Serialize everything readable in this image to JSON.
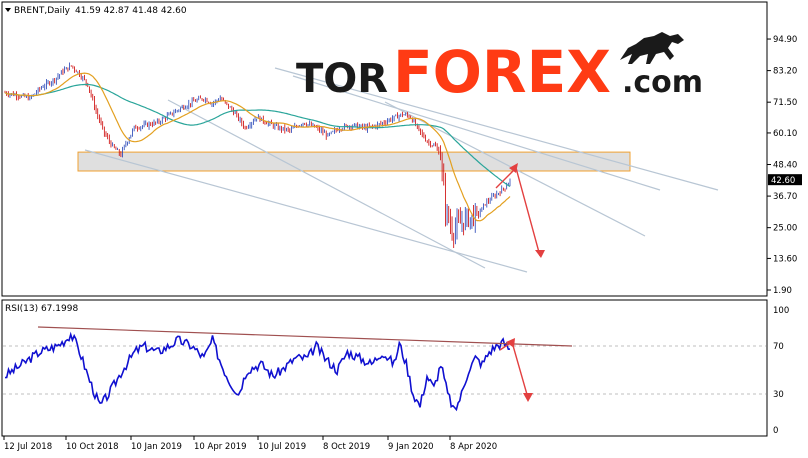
{
  "header": {
    "symbol": "BRENT,Daily",
    "ohlc": "41.59 42.87 41.48 42.60"
  },
  "rsi_header": "RSI(13) 67.1998",
  "logo": {
    "brand": "TORFOREX",
    "suffix": ".com"
  },
  "colors": {
    "bull": "#1f3fb5",
    "bear": "#cc0000",
    "ma_fast": "#e3a020",
    "ma_slow": "#2aa59a",
    "trend": "#b8c6d4",
    "arrow": "#e34040",
    "rsi_line": "#1010d0",
    "rsi_trend": "#a05050",
    "zone_fill": "#d9d9d9",
    "zone_border": "#f0a030",
    "logo_dark": "#1a1a1a",
    "logo_red": "#ff3b14"
  },
  "chart_data": [
    {
      "type": "candlestick",
      "symbol": "BRENT",
      "timeframe": "Daily",
      "ylim": [
        1.9,
        106.4
      ],
      "price_ticks": [
        94.9,
        83.2,
        71.5,
        60.1,
        48.4,
        36.7,
        25.0,
        13.6,
        1.9
      ],
      "current_price": 42.6,
      "x_ticks": [
        "12 Jul 2018",
        "10 Oct 2018",
        "10 Jan 2019",
        "10 Apr 2019",
        "10 Jul 2019",
        "8 Oct 2019",
        "9 Jan 2020",
        "8 Apr 2020"
      ],
      "price_path": [
        [
          0,
          75
        ],
        [
          8,
          74
        ],
        [
          15,
          73
        ],
        [
          22,
          77
        ],
        [
          30,
          80
        ],
        [
          35,
          83
        ],
        [
          40,
          85
        ],
        [
          45,
          82
        ],
        [
          50,
          78
        ],
        [
          55,
          68
        ],
        [
          60,
          60
        ],
        [
          65,
          55
        ],
        [
          70,
          52
        ],
        [
          72,
          55
        ],
        [
          78,
          62
        ],
        [
          85,
          63
        ],
        [
          92,
          64
        ],
        [
          100,
          67
        ],
        [
          108,
          70
        ],
        [
          115,
          72
        ],
        [
          120,
          73
        ],
        [
          125,
          71
        ],
        [
          130,
          73
        ],
        [
          138,
          68
        ],
        [
          145,
          62
        ],
        [
          152,
          66
        ],
        [
          158,
          64
        ],
        [
          165,
          62
        ],
        [
          172,
          61
        ],
        [
          180,
          64
        ],
        [
          188,
          62
        ],
        [
          195,
          59
        ],
        [
          202,
          62
        ],
        [
          210,
          63
        ],
        [
          218,
          62
        ],
        [
          225,
          63
        ],
        [
          232,
          65
        ],
        [
          240,
          67
        ],
        [
          245,
          66
        ],
        [
          250,
          61
        ],
        [
          255,
          57
        ],
        [
          260,
          55
        ],
        [
          263,
          52
        ],
        [
          266,
          32
        ],
        [
          270,
          24
        ],
        [
          274,
          26
        ],
        [
          278,
          28
        ],
        [
          282,
          29
        ],
        [
          286,
          30
        ],
        [
          290,
          34
        ],
        [
          294,
          36
        ],
        [
          298,
          38
        ],
        [
          302,
          40
        ],
        [
          305,
          42.6
        ]
      ],
      "price_scale_max_index": 305,
      "zone": [
        46.0,
        53.0
      ],
      "zone_index_range": [
        45,
        378
      ]
    },
    {
      "type": "line",
      "name": "RSI(13)",
      "value": 67.1998,
      "ylim": [
        0,
        100
      ],
      "y_ticks": [
        100,
        70,
        30,
        0
      ],
      "levels": [
        70,
        30
      ],
      "rsi_path": [
        [
          0,
          45
        ],
        [
          10,
          55
        ],
        [
          20,
          65
        ],
        [
          30,
          70
        ],
        [
          35,
          75
        ],
        [
          38,
          80
        ],
        [
          42,
          70
        ],
        [
          48,
          45
        ],
        [
          52,
          30
        ],
        [
          55,
          20
        ],
        [
          60,
          30
        ],
        [
          68,
          50
        ],
        [
          75,
          65
        ],
        [
          80,
          70
        ],
        [
          88,
          65
        ],
        [
          95,
          70
        ],
        [
          100,
          75
        ],
        [
          108,
          70
        ],
        [
          115,
          60
        ],
        [
          120,
          75
        ],
        [
          125,
          55
        ],
        [
          130,
          40
        ],
        [
          135,
          30
        ],
        [
          140,
          50
        ],
        [
          148,
          55
        ],
        [
          155,
          45
        ],
        [
          160,
          50
        ],
        [
          168,
          60
        ],
        [
          175,
          60
        ],
        [
          180,
          70
        ],
        [
          185,
          60
        ],
        [
          192,
          50
        ],
        [
          198,
          65
        ],
        [
          205,
          60
        ],
        [
          212,
          55
        ],
        [
          218,
          65
        ],
        [
          225,
          55
        ],
        [
          228,
          72
        ],
        [
          232,
          55
        ],
        [
          236,
          30
        ],
        [
          240,
          20
        ],
        [
          244,
          45
        ],
        [
          248,
          35
        ],
        [
          252,
          55
        ],
        [
          256,
          30
        ],
        [
          260,
          15
        ],
        [
          264,
          30
        ],
        [
          268,
          50
        ],
        [
          272,
          60
        ],
        [
          276,
          55
        ],
        [
          280,
          65
        ],
        [
          284,
          70
        ],
        [
          288,
          73
        ],
        [
          292,
          67
        ]
      ]
    }
  ]
}
